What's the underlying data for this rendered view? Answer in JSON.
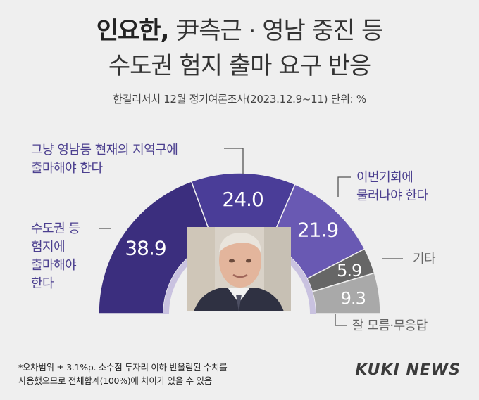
{
  "header": {
    "title_bold": "인요한,",
    "title_line1_rest": "尹측근 · 영남 중진 등",
    "title_line2": "수도권 험지 출마 요구 반응",
    "subtitle": "한길리서치 12월 정기여론조사(2023.12.9~11) 단위: %"
  },
  "labels": {
    "metro": [
      "수도권 등",
      "험지에",
      "출마해야",
      "한다"
    ],
    "stay": [
      "그냥 영남등 현재의 지역구에",
      "출마해야 한다"
    ],
    "retire": [
      "이번기회에",
      "물러나야 한다"
    ],
    "other": [
      "기타"
    ],
    "dk": [
      "잘 모름·무응답"
    ]
  },
  "footnote": [
    "*오차범위 ± 3.1%p. 소수점 두자리 이하 반올림된 수치를",
    "사용했으므로 전체합계(100%)에 차이가 있을 수 있음"
  ],
  "logo": "KUKI NEWS",
  "chart_data": {
    "type": "pie",
    "subtype": "semi-donut",
    "categories": [
      "수도권 등 험지에 출마해야 한다",
      "그냥 영남등 현재의 지역구에 출마해야 한다",
      "이번기회에 물러나야 한다",
      "기타",
      "잘 모름·무응답"
    ],
    "values": [
      38.9,
      24.0,
      21.9,
      5.9,
      9.3
    ],
    "value_labels": [
      "38.9",
      "24.0",
      "21.9",
      "5.9",
      "9.3"
    ],
    "colors": [
      "#3b2e7e",
      "#4a3d98",
      "#6959b3",
      "#666666",
      "#a9a9a9"
    ],
    "unit": "%"
  }
}
